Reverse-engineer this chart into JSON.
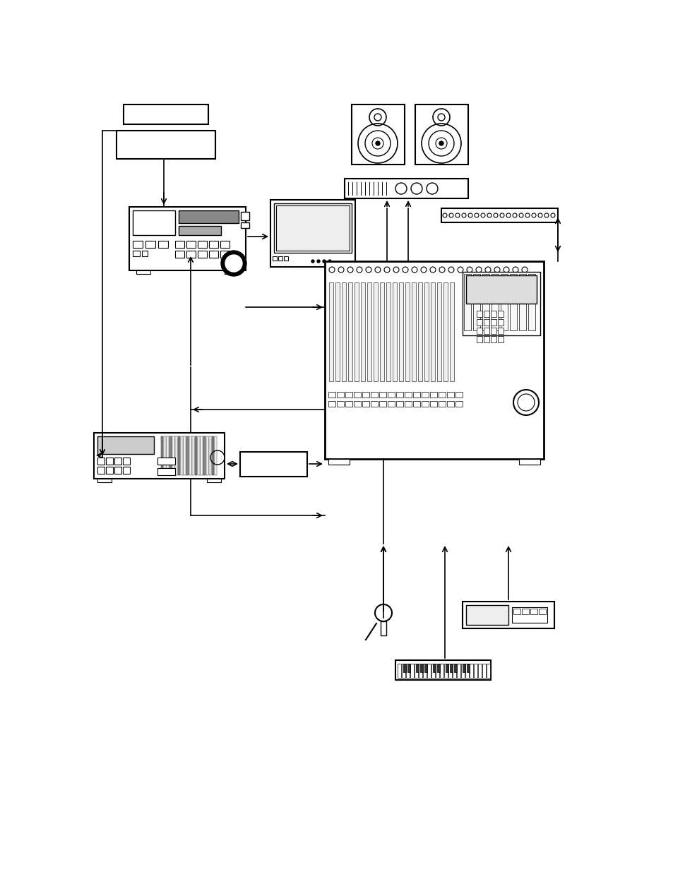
{
  "bg_color": "#ffffff",
  "fg_color": "#000000",
  "figsize": [
    9.54,
    12.35
  ],
  "dpi": 100
}
